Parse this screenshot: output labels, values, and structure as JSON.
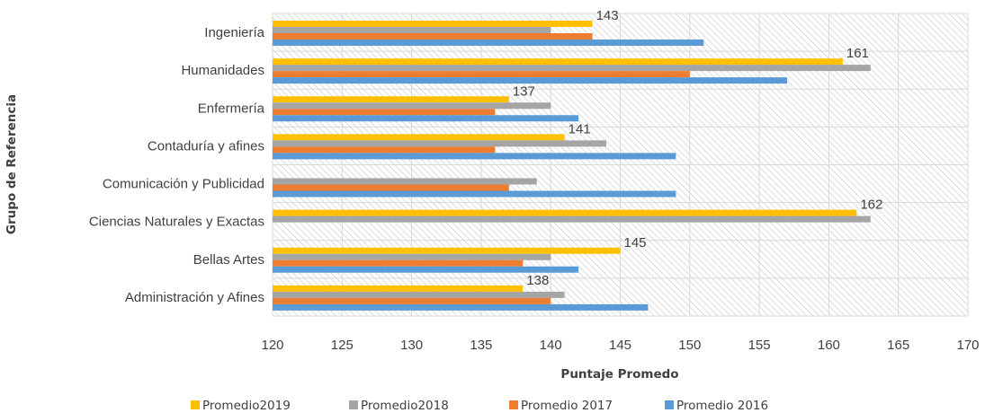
{
  "chart_data": {
    "type": "bar",
    "orientation": "horizontal",
    "categories": [
      "Ingeniería",
      "Humanidades",
      "Enfermería",
      "Contaduría y afines",
      "Comunicación y Publicidad",
      "Ciencias Naturales y Exactas",
      "Bellas Artes",
      "Administración y Afines"
    ],
    "series": [
      {
        "name": "Promedio2019",
        "color": "#FFC000",
        "values": [
          143,
          161,
          137,
          141,
          null,
          162,
          145,
          138
        ]
      },
      {
        "name": "Promedio2018",
        "color": "#A5A5A5",
        "values": [
          140,
          163,
          140,
          144,
          139,
          163,
          140,
          141
        ]
      },
      {
        "name": "Promedio 2017",
        "color": "#ED7D31",
        "values": [
          143,
          150,
          136,
          136,
          137,
          null,
          138,
          140
        ]
      },
      {
        "name": "Promedio 2016",
        "color": "#5B9BD5",
        "values": [
          151,
          157,
          142,
          149,
          149,
          null,
          142,
          147
        ]
      }
    ],
    "data_labels": [
      {
        "category": "Ingeniería",
        "series": "Promedio2019",
        "text": "143"
      },
      {
        "category": "Humanidades",
        "series": "Promedio2019",
        "text": "161"
      },
      {
        "category": "Enfermería",
        "series": "Promedio2019",
        "text": "137"
      },
      {
        "category": "Contaduría y afines",
        "series": "Promedio2019",
        "text": "141"
      },
      {
        "category": "Ciencias Naturales y Exactas",
        "series": "Promedio2019",
        "text": "162"
      },
      {
        "category": "Bellas Artes",
        "series": "Promedio2019",
        "text": "145"
      },
      {
        "category": "Administración y Afines",
        "series": "Promedio2019",
        "text": "138"
      }
    ],
    "xlim": [
      120,
      170
    ],
    "xticks": [
      "120",
      "125",
      "130",
      "135",
      "140",
      "145",
      "150",
      "155",
      "160",
      "165",
      "170"
    ],
    "xlabel": "Puntaje Promedo",
    "ylabel": "Grupo de Referencia",
    "title": "",
    "grid": true,
    "legend_position": "bottom"
  }
}
